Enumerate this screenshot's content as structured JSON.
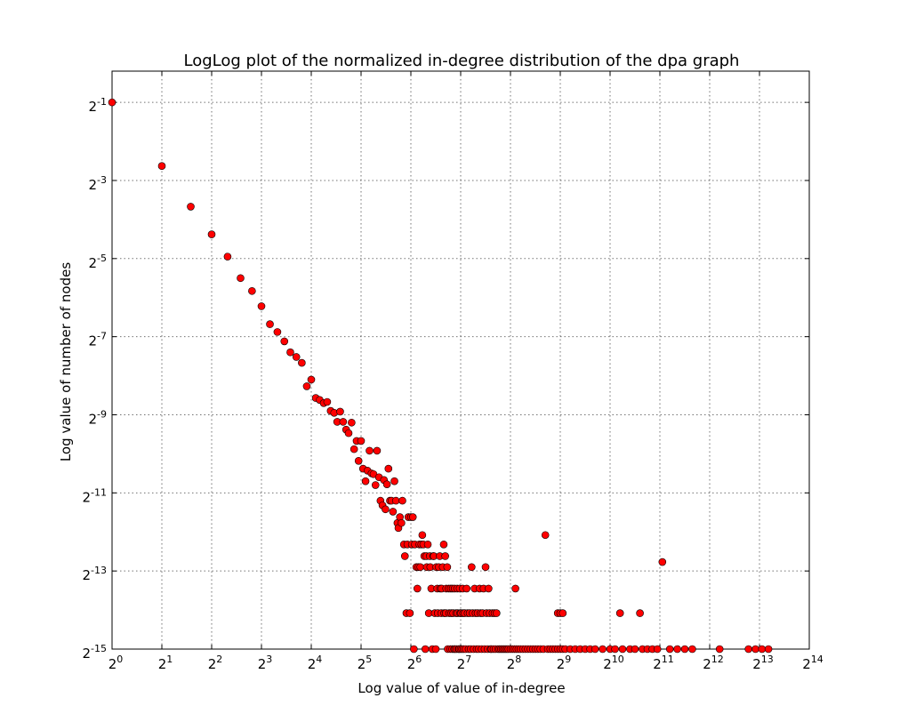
{
  "chart_data": {
    "type": "scatter",
    "title": "LogLog plot of the normalized in-degree distribution of the dpa graph",
    "xlabel": "Log value of value of in-degree",
    "ylabel": "Log value of number of nodes",
    "xscale": "log2",
    "yscale": "log2",
    "xlim_log2": [
      0,
      14
    ],
    "ylim_log2": [
      -15,
      -0.2
    ],
    "xticks": [
      "2^0",
      "2^1",
      "2^2",
      "2^3",
      "2^4",
      "2^5",
      "2^6",
      "2^7",
      "2^8",
      "2^9",
      "2^10",
      "2^11",
      "2^12",
      "2^13",
      "2^14"
    ],
    "yticks": [
      "2^-1",
      "2^-3",
      "2^-5",
      "2^-7",
      "2^-9",
      "2^-11",
      "2^-13",
      "2^-15"
    ],
    "grid": true,
    "marker_color": "#ff0000",
    "series": [
      {
        "points_log2": [
          [
            0,
            -1
          ],
          [
            1,
            -2.63
          ],
          [
            1.58,
            -3.67
          ],
          [
            2,
            -4.38
          ],
          [
            2.32,
            -4.95
          ],
          [
            2.58,
            -5.5
          ],
          [
            2.81,
            -5.83
          ],
          [
            3,
            -6.22
          ],
          [
            3.17,
            -6.68
          ],
          [
            3.32,
            -6.88
          ],
          [
            3.46,
            -7.12
          ],
          [
            3.58,
            -7.4
          ],
          [
            3.7,
            -7.52
          ],
          [
            3.81,
            -7.67
          ],
          [
            3.91,
            -8.27
          ],
          [
            4,
            -8.1
          ],
          [
            4.09,
            -8.57
          ],
          [
            4.17,
            -8.62
          ],
          [
            4.25,
            -8.7
          ],
          [
            4.32,
            -8.67
          ],
          [
            4.39,
            -8.9
          ],
          [
            4.46,
            -8.95
          ],
          [
            4.52,
            -9.18
          ],
          [
            4.58,
            -8.92
          ],
          [
            4.64,
            -9.18
          ],
          [
            4.7,
            -9.38
          ],
          [
            4.75,
            -9.47
          ],
          [
            4.81,
            -9.2
          ],
          [
            4.86,
            -9.88
          ],
          [
            4.91,
            -9.67
          ],
          [
            4.95,
            -10.18
          ],
          [
            5,
            -9.67
          ],
          [
            5.04,
            -10.38
          ],
          [
            5.09,
            -10.7
          ],
          [
            5.13,
            -10.43
          ],
          [
            5.17,
            -9.92
          ],
          [
            5.21,
            -10.5
          ],
          [
            5.25,
            -10.52
          ],
          [
            5.29,
            -10.8
          ],
          [
            5.32,
            -9.92
          ],
          [
            5.36,
            -10.6
          ],
          [
            5.39,
            -11.2
          ],
          [
            5.43,
            -11.32
          ],
          [
            5.46,
            -10.67
          ],
          [
            5.49,
            -11.42
          ],
          [
            5.52,
            -10.78
          ],
          [
            5.55,
            -10.38
          ],
          [
            5.58,
            -11.2
          ],
          [
            5.61,
            -11.2
          ],
          [
            5.64,
            -11.48
          ],
          [
            5.67,
            -10.7
          ],
          [
            5.7,
            -11.2
          ],
          [
            5.73,
            -11.77
          ],
          [
            5.75,
            -11.9
          ],
          [
            5.78,
            -11.62
          ],
          [
            5.81,
            -11.77
          ],
          [
            5.83,
            -11.2
          ],
          [
            5.86,
            -12.32
          ],
          [
            5.88,
            -12.62
          ],
          [
            5.91,
            -14.08
          ],
          [
            5.93,
            -12.32
          ],
          [
            5.95,
            -11.62
          ],
          [
            5.98,
            -14.08
          ],
          [
            6,
            -11.62
          ],
          [
            6.02,
            -12.32
          ],
          [
            6.04,
            -11.62
          ],
          [
            6.06,
            -15
          ],
          [
            6.08,
            -12.32
          ],
          [
            6.11,
            -12.9
          ],
          [
            6.13,
            -13.45
          ],
          [
            6.15,
            -12.9
          ],
          [
            6.17,
            -12.32
          ],
          [
            6.19,
            -12.9
          ],
          [
            6.21,
            -12.32
          ],
          [
            6.23,
            -12.08
          ],
          [
            6.25,
            -12.32
          ],
          [
            6.27,
            -12.62
          ],
          [
            6.29,
            -15
          ],
          [
            6.31,
            -12.62
          ],
          [
            6.32,
            -12.9
          ],
          [
            6.34,
            -12.32
          ],
          [
            6.36,
            -14.08
          ],
          [
            6.38,
            -12.62
          ],
          [
            6.39,
            -12.9
          ],
          [
            6.41,
            -13.45
          ],
          [
            6.43,
            -15
          ],
          [
            6.45,
            -12.62
          ],
          [
            6.46,
            -12.62
          ],
          [
            6.48,
            -14.08
          ],
          [
            6.5,
            -15
          ],
          [
            6.51,
            -12.9
          ],
          [
            6.53,
            -13.45
          ],
          [
            6.54,
            -14.08
          ],
          [
            6.56,
            -12.9
          ],
          [
            6.58,
            -12.62
          ],
          [
            6.59,
            -13.45
          ],
          [
            6.61,
            -14.08
          ],
          [
            6.62,
            -13.45
          ],
          [
            6.64,
            -12.9
          ],
          [
            6.66,
            -12.32
          ],
          [
            6.67,
            -14.08
          ],
          [
            6.69,
            -12.62
          ],
          [
            6.7,
            -14.08
          ],
          [
            6.71,
            -13.45
          ],
          [
            6.73,
            -12.9
          ],
          [
            6.74,
            -15
          ],
          [
            6.76,
            -13.45
          ],
          [
            6.77,
            -14.08
          ],
          [
            6.79,
            -15
          ],
          [
            6.8,
            -13.45
          ],
          [
            6.81,
            -14.08
          ],
          [
            6.83,
            -15
          ],
          [
            6.84,
            -13.45
          ],
          [
            6.85,
            -14.08
          ],
          [
            6.87,
            -15
          ],
          [
            6.88,
            -13.45
          ],
          [
            6.89,
            -15
          ],
          [
            6.91,
            -14.08
          ],
          [
            6.92,
            -15
          ],
          [
            6.93,
            -13.45
          ],
          [
            6.94,
            -14.08
          ],
          [
            6.96,
            -15
          ],
          [
            6.97,
            -15
          ],
          [
            6.98,
            -13.45
          ],
          [
            6.99,
            -14.08
          ],
          [
            7,
            -15
          ],
          [
            7.01,
            -14.08
          ],
          [
            7.03,
            -15
          ],
          [
            7.04,
            -13.45
          ],
          [
            7.05,
            -14.08
          ],
          [
            7.06,
            -15
          ],
          [
            7.08,
            -14.08
          ],
          [
            7.1,
            -15
          ],
          [
            7.12,
            -13.45
          ],
          [
            7.14,
            -14.08
          ],
          [
            7.16,
            -15
          ],
          [
            7.18,
            -14.08
          ],
          [
            7.2,
            -15
          ],
          [
            7.22,
            -12.9
          ],
          [
            7.24,
            -14.08
          ],
          [
            7.26,
            -15
          ],
          [
            7.28,
            -13.45
          ],
          [
            7.3,
            -14.08
          ],
          [
            7.32,
            -15
          ],
          [
            7.34,
            -14.08
          ],
          [
            7.36,
            -15
          ],
          [
            7.38,
            -13.45
          ],
          [
            7.4,
            -14.08
          ],
          [
            7.42,
            -15
          ],
          [
            7.44,
            -14.08
          ],
          [
            7.46,
            -13.45
          ],
          [
            7.48,
            -15
          ],
          [
            7.5,
            -12.9
          ],
          [
            7.52,
            -14.08
          ],
          [
            7.54,
            -15
          ],
          [
            7.56,
            -13.45
          ],
          [
            7.58,
            -14.08
          ],
          [
            7.6,
            -15
          ],
          [
            7.62,
            -15
          ],
          [
            7.64,
            -14.08
          ],
          [
            7.66,
            -15
          ],
          [
            7.68,
            -14.08
          ],
          [
            7.7,
            -15
          ],
          [
            7.72,
            -14.08
          ],
          [
            7.75,
            -15
          ],
          [
            7.78,
            -15
          ],
          [
            7.81,
            -15
          ],
          [
            7.84,
            -15
          ],
          [
            7.87,
            -15
          ],
          [
            7.9,
            -15
          ],
          [
            7.93,
            -15
          ],
          [
            7.96,
            -15
          ],
          [
            8,
            -15
          ],
          [
            8.04,
            -15
          ],
          [
            8.08,
            -15
          ],
          [
            8.1,
            -13.45
          ],
          [
            8.12,
            -15
          ],
          [
            8.16,
            -15
          ],
          [
            8.2,
            -15
          ],
          [
            8.25,
            -15
          ],
          [
            8.3,
            -15
          ],
          [
            8.35,
            -15
          ],
          [
            8.4,
            -15
          ],
          [
            8.45,
            -15
          ],
          [
            8.5,
            -15
          ],
          [
            8.55,
            -15
          ],
          [
            8.6,
            -15
          ],
          [
            8.66,
            -15
          ],
          [
            8.7,
            -12.08
          ],
          [
            8.75,
            -15
          ],
          [
            8.8,
            -15
          ],
          [
            8.85,
            -15
          ],
          [
            8.9,
            -15
          ],
          [
            8.95,
            -15
          ],
          [
            8.95,
            -14.08
          ],
          [
            9,
            -14.08
          ],
          [
            9,
            -15
          ],
          [
            9.05,
            -14.08
          ],
          [
            9.05,
            -15
          ],
          [
            9.1,
            -15
          ],
          [
            9.2,
            -15
          ],
          [
            9.3,
            -15
          ],
          [
            9.4,
            -15
          ],
          [
            9.5,
            -15
          ],
          [
            9.6,
            -15
          ],
          [
            9.7,
            -15
          ],
          [
            9.85,
            -15
          ],
          [
            10,
            -15
          ],
          [
            10.1,
            -15
          ],
          [
            10.2,
            -14.08
          ],
          [
            10.25,
            -15
          ],
          [
            10.4,
            -15
          ],
          [
            10.5,
            -15
          ],
          [
            10.6,
            -14.08
          ],
          [
            10.65,
            -15
          ],
          [
            10.75,
            -15
          ],
          [
            10.85,
            -15
          ],
          [
            10.95,
            -15
          ],
          [
            11.05,
            -12.77
          ],
          [
            11.2,
            -15
          ],
          [
            11.35,
            -15
          ],
          [
            11.5,
            -15
          ],
          [
            11.65,
            -15
          ],
          [
            12.2,
            -15
          ],
          [
            12.78,
            -15
          ],
          [
            12.92,
            -15
          ],
          [
            13.05,
            -15
          ],
          [
            13.18,
            -15
          ]
        ]
      }
    ]
  }
}
